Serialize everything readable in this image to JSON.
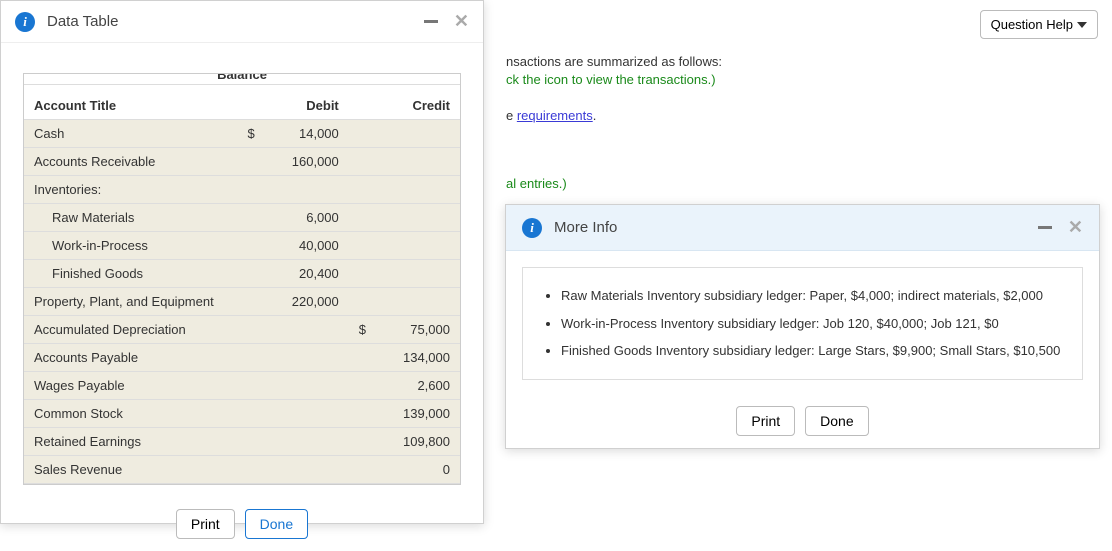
{
  "help_button_label": "Question Help",
  "background": {
    "line1_suffix": "nsactions are summarized as follows:",
    "line2_green_suffix": "ck the icon to view the transactions.)",
    "line3_prefix": "e ",
    "requirements_link": "requirements",
    "line3_suffix": ".",
    "line4_green_suffix": "al entries.)"
  },
  "data_table": {
    "title": "Data Table",
    "balance_label": "Balance",
    "col_account": "Account Title",
    "col_debit": "Debit",
    "col_credit": "Credit",
    "currency": "$",
    "rows": [
      {
        "title": "Cash",
        "cur_d": "$",
        "debit": "14,000",
        "credit": ""
      },
      {
        "title": "Accounts Receivable",
        "debit": "160,000",
        "credit": ""
      },
      {
        "title": "Inventories:",
        "debit": "",
        "credit": ""
      },
      {
        "title": "Raw Materials",
        "indent": true,
        "debit": "6,000",
        "credit": ""
      },
      {
        "title": "Work-in-Process",
        "indent": true,
        "debit": "40,000",
        "credit": ""
      },
      {
        "title": "Finished Goods",
        "indent": true,
        "debit": "20,400",
        "credit": ""
      },
      {
        "title": "Property, Plant, and Equipment",
        "debit": "220,000",
        "credit": ""
      },
      {
        "title": "Accumulated Depreciation",
        "debit": "",
        "cur_c": "$",
        "credit": "75,000"
      },
      {
        "title": "Accounts Payable",
        "debit": "",
        "credit": "134,000"
      },
      {
        "title": "Wages Payable",
        "debit": "",
        "credit": "2,600"
      },
      {
        "title": "Common Stock",
        "debit": "",
        "credit": "139,000"
      },
      {
        "title": "Retained Earnings",
        "debit": "",
        "credit": "109,800"
      },
      {
        "title": "Sales Revenue",
        "debit": "",
        "credit": "0"
      }
    ],
    "print_label": "Print",
    "done_label": "Done"
  },
  "more_info": {
    "title": "More Info",
    "bullets": [
      "Raw Materials Inventory subsidiary ledger: Paper, $4,000; indirect materials, $2,000",
      "Work-in-Process Inventory subsidiary ledger: Job 120, $40,000; Job 121, $0",
      "Finished Goods Inventory subsidiary ledger: Large Stars, $9,900; Small Stars, $10,500"
    ],
    "print_label": "Print",
    "done_label": "Done"
  }
}
